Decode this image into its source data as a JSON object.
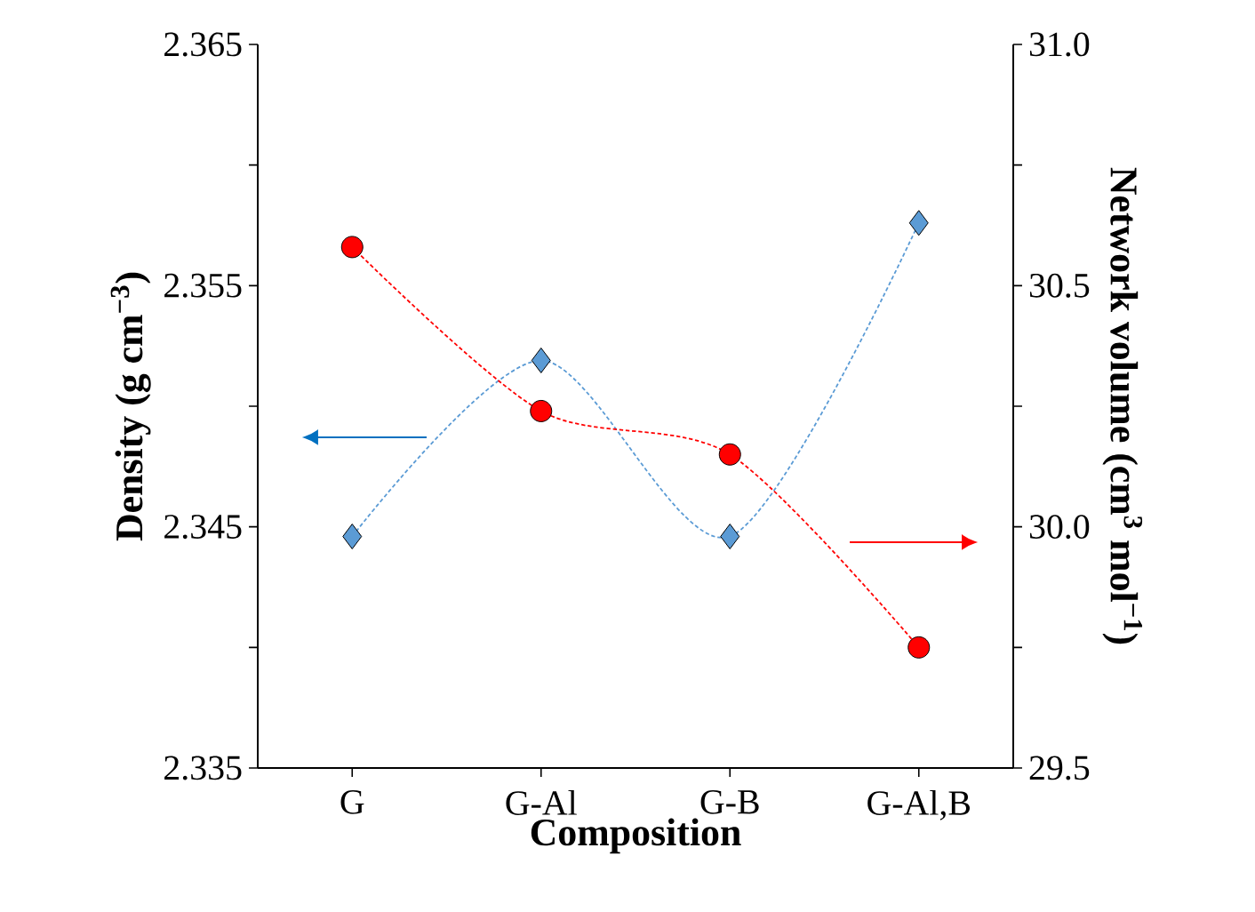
{
  "chart_data": {
    "type": "line",
    "xlabel": "Composition",
    "ylabel": "Density (g cm$^{−3}$)",
    "y2label": "Network volume (cm$^{3}$ mol$^{−1}$)",
    "categories": [
      "G",
      "G-Al",
      "G-B",
      "G-Al,B"
    ],
    "series": [
      {
        "color": "#5b9bd5",
        "values": [
          2.3446,
          2.3519,
          2.3446,
          2.3576
        ],
        "marker": "diamond",
        "line_style": "dashed",
        "axis": "y"
      },
      {
        "color": "#ff0000",
        "values": [
          30.58,
          30.24,
          30.15,
          29.75
        ],
        "marker": "circle",
        "line_style": "dashed",
        "axis": "y2"
      }
    ],
    "ylim": [
      2.335,
      2.365
    ],
    "yticks": [
      2.335,
      {
        "value": 2.34,
        "label": null
      },
      2.345,
      {
        "value": 2.35,
        "label": null
      },
      2.355,
      {
        "value": 2.36,
        "label": null
      },
      2.365
    ],
    "y2lim": [
      29.5,
      31.0
    ],
    "y2ticks": [
      29.5,
      {
        "value": 29.75,
        "label": null
      },
      {
        "value": 30.0,
        "label": "30.0"
      },
      {
        "value": 30.25,
        "label": null
      },
      30.5,
      {
        "value": 30.75,
        "label": null
      },
      {
        "value": 31.0,
        "label": "31.0"
      }
    ]
  }
}
